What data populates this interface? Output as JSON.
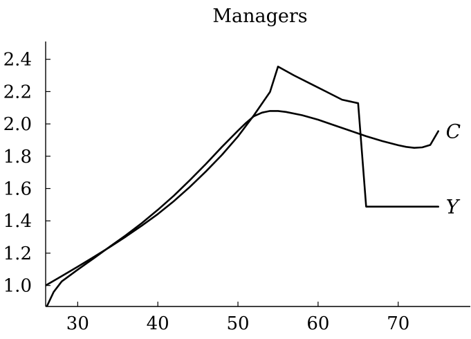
{
  "chart_data": {
    "type": "line",
    "title": "Managers",
    "xlabel": "",
    "ylabel": "",
    "xlim": [
      26,
      79
    ],
    "ylim": [
      0.87,
      2.51
    ],
    "xticks": [
      30,
      40,
      50,
      60,
      70
    ],
    "xtick_labels": [
      "30",
      "40",
      "50",
      "60",
      "70"
    ],
    "yticks": [
      1.0,
      1.2,
      1.4,
      1.6,
      1.8,
      2.0,
      2.2,
      2.4
    ],
    "ytick_labels": [
      "1.0",
      "1.2",
      "1.4",
      "1.6",
      "1.8",
      "2.0",
      "2.2",
      "2.4"
    ],
    "grid": false,
    "legend": "none",
    "series": [
      {
        "name": "Y",
        "x": [
          26,
          28,
          30,
          32,
          34,
          36,
          38,
          40,
          42,
          44,
          46,
          48,
          50,
          52,
          54,
          55,
          57,
          59,
          61,
          63,
          65,
          66,
          68,
          70,
          72,
          75
        ],
        "y": [
          1.0,
          1.058,
          1.116,
          1.176,
          1.238,
          1.302,
          1.37,
          1.442,
          1.522,
          1.61,
          1.706,
          1.808,
          1.922,
          2.054,
          2.198,
          2.355,
          2.3,
          2.25,
          2.2,
          2.15,
          2.128,
          1.488,
          1.488,
          1.488,
          1.488,
          1.488
        ]
      },
      {
        "name": "C",
        "x": [
          26,
          27,
          28,
          30,
          32,
          34,
          36,
          38,
          40,
          42,
          44,
          46,
          48,
          50,
          51,
          52,
          53,
          54,
          55,
          56,
          58,
          60,
          62,
          64,
          66,
          68,
          70,
          71,
          72,
          73,
          74,
          75
        ],
        "y": [
          0.855,
          0.96,
          1.025,
          1.098,
          1.168,
          1.24,
          1.31,
          1.386,
          1.468,
          1.556,
          1.652,
          1.752,
          1.858,
          1.958,
          2.006,
          2.048,
          2.07,
          2.08,
          2.08,
          2.074,
          2.054,
          2.026,
          1.992,
          1.958,
          1.924,
          1.894,
          1.868,
          1.858,
          1.852,
          1.855,
          1.87,
          1.955
        ]
      }
    ]
  }
}
